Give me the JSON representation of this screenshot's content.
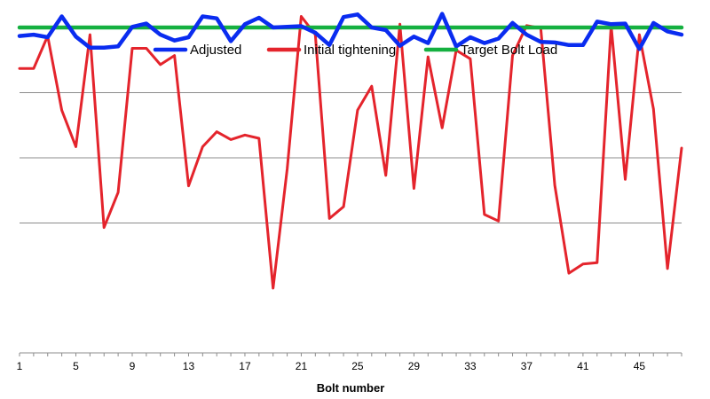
{
  "chart_data": {
    "type": "line",
    "title": "",
    "xlabel": "Bolt number",
    "ylabel": "",
    "x": [
      1,
      2,
      3,
      4,
      5,
      6,
      7,
      8,
      9,
      10,
      11,
      12,
      13,
      14,
      15,
      16,
      17,
      18,
      19,
      20,
      21,
      22,
      23,
      24,
      25,
      26,
      27,
      28,
      29,
      30,
      31,
      32,
      33,
      34,
      35,
      36,
      37,
      38,
      39,
      40,
      41,
      42,
      43,
      44,
      45,
      46,
      47,
      48
    ],
    "x_ticks": [
      1,
      5,
      9,
      13,
      17,
      21,
      25,
      29,
      33,
      37,
      41,
      45
    ],
    "xlim": [
      1,
      48
    ],
    "ylim": [
      0,
      5
    ],
    "y_gridlines": [
      1,
      2,
      3,
      4,
      5
    ],
    "y_tick_labels_visible": false,
    "grid": true,
    "legend_position": "top",
    "series": [
      {
        "name": "Adjusted",
        "color": "#0a2cf0",
        "values": [
          3.87,
          3.89,
          3.85,
          4.17,
          3.86,
          3.69,
          3.69,
          3.71,
          4.01,
          4.06,
          3.89,
          3.8,
          3.85,
          4.17,
          4.14,
          3.79,
          4.05,
          4.15,
          4.0,
          4.01,
          4.02,
          3.92,
          3.73,
          4.16,
          4.2,
          4.0,
          3.96,
          3.72,
          3.86,
          3.76,
          4.21,
          3.71,
          3.85,
          3.76,
          3.83,
          4.07,
          3.89,
          3.78,
          3.77,
          3.73,
          3.73,
          4.09,
          4.05,
          4.06,
          3.67,
          4.07,
          3.94,
          3.89
        ]
      },
      {
        "name": "Initial tightening",
        "color": "#e4242c",
        "values": [
          3.37,
          3.37,
          3.87,
          2.73,
          2.17,
          3.89,
          0.93,
          1.47,
          3.68,
          3.68,
          3.43,
          3.57,
          1.57,
          2.17,
          2.4,
          2.28,
          2.35,
          2.3,
          0.0,
          1.83,
          4.17,
          3.89,
          1.07,
          1.25,
          2.73,
          3.1,
          1.73,
          4.05,
          1.53,
          3.55,
          2.46,
          3.65,
          3.52,
          1.13,
          1.03,
          3.57,
          4.03,
          3.99,
          1.58,
          0.23,
          0.37,
          0.39,
          4.03,
          1.67,
          3.89,
          2.75,
          0.3,
          2.15
        ]
      },
      {
        "name": "Target Bolt Load",
        "color": "#15b040",
        "values": [
          4.0,
          4.0,
          4.0,
          4.0,
          4.0,
          4.0,
          4.0,
          4.0,
          4.0,
          4.0,
          4.0,
          4.0,
          4.0,
          4.0,
          4.0,
          4.0,
          4.0,
          4.0,
          4.0,
          4.0,
          4.0,
          4.0,
          4.0,
          4.0,
          4.0,
          4.0,
          4.0,
          4.0,
          4.0,
          4.0,
          4.0,
          4.0,
          4.0,
          4.0,
          4.0,
          4.0,
          4.0,
          4.0,
          4.0,
          4.0,
          4.0,
          4.0,
          4.0,
          4.0,
          4.0,
          4.0,
          4.0,
          4.0
        ]
      }
    ]
  }
}
